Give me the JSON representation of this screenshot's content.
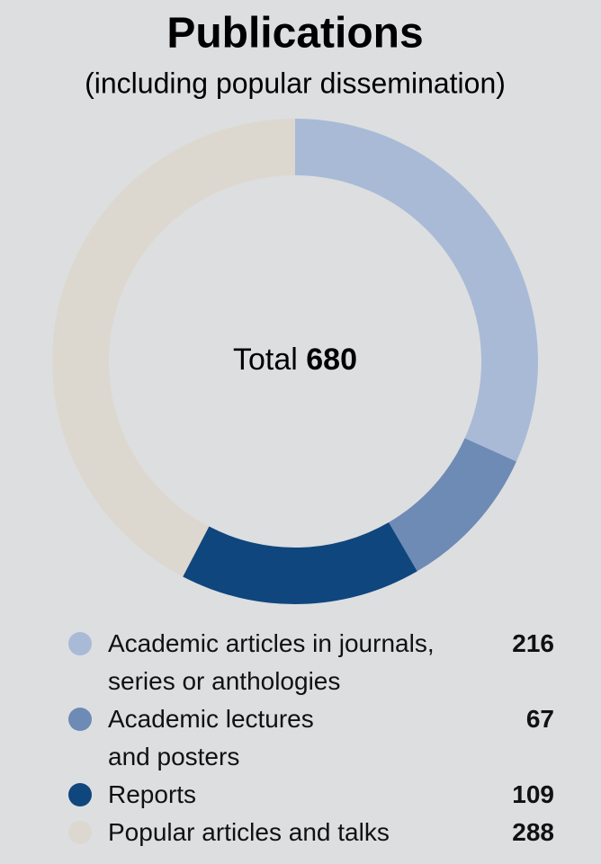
{
  "chart_data": {
    "type": "donut",
    "title": "Publications",
    "subtitle": "(including popular dissemination)",
    "total_label": "Total",
    "total": 680,
    "categories": [
      "Academic articles in journals,\nseries or anthologies",
      "Academic lectures\nand posters",
      "Reports",
      "Popular articles and talks"
    ],
    "values": [
      216,
      67,
      109,
      288
    ],
    "colors": [
      "#a9bad6",
      "#6d8bb5",
      "#0f467d",
      "#ddd8cf"
    ]
  }
}
